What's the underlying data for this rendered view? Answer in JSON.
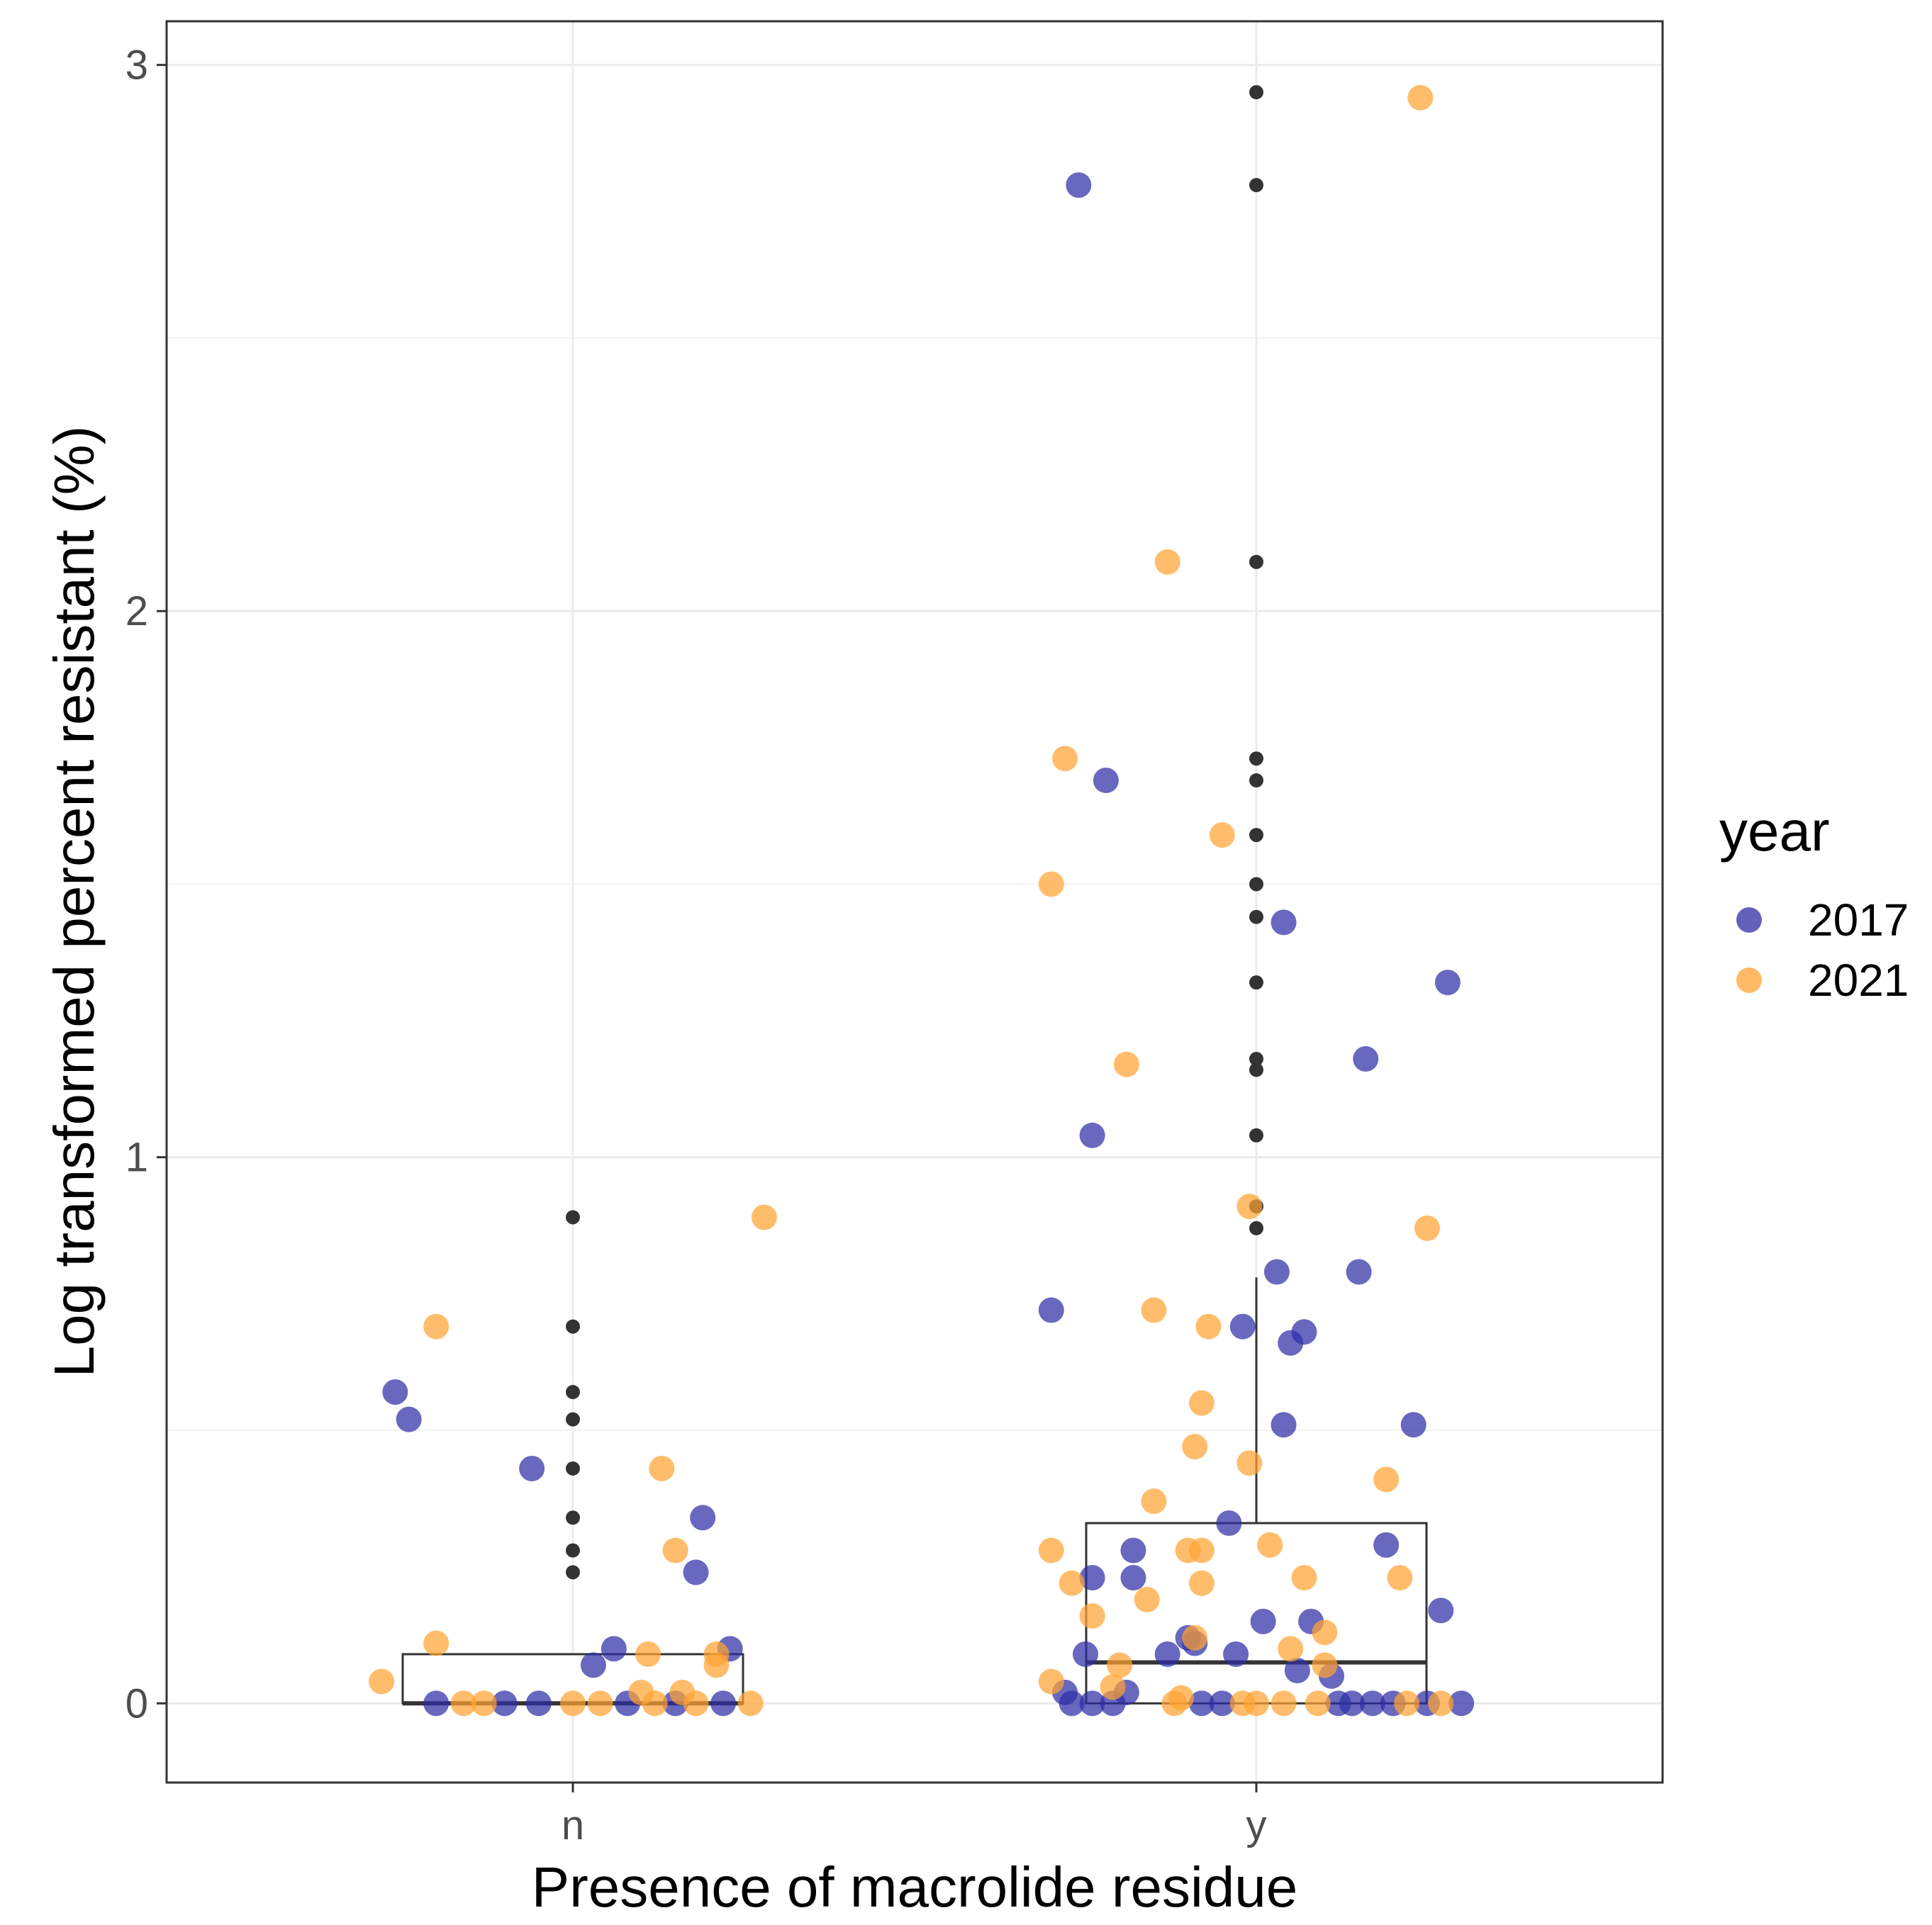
{
  "chart_data": {
    "type": "box-jitter",
    "title": "",
    "xlabel": "Presence of macrolide residue",
    "ylabel": "Log transformed percent resistant (%)",
    "categories": [
      "n",
      "y"
    ],
    "ylim": [
      -0.145,
      3.08
    ],
    "yticks": [
      0,
      1,
      2,
      3
    ],
    "ytick_labels": [
      "0",
      "1",
      "2",
      "3"
    ],
    "grid": true,
    "legend": {
      "title": "year",
      "position": "right",
      "entries": [
        {
          "label": "2017",
          "color": "#2E2EA6"
        },
        {
          "label": "2021",
          "color": "#FFA333"
        }
      ]
    },
    "boxplots": [
      {
        "category": "n",
        "min": 0,
        "q1": 0,
        "median": 0,
        "q3": 0.09,
        "max": 0.09,
        "outliers": [
          0.89,
          0.69,
          0.57,
          0.52,
          0.43,
          0.34,
          0.28,
          0.24
        ]
      },
      {
        "category": "y",
        "min": 0,
        "q1": 0,
        "median": 0.075,
        "q3": 0.33,
        "max": 0.78,
        "outliers": [
          2.95,
          2.78,
          2.09,
          1.73,
          1.69,
          1.59,
          1.5,
          1.44,
          1.32,
          1.18,
          1.16,
          1.04,
          0.91,
          0.87
        ]
      }
    ],
    "series": [
      {
        "name": "2017",
        "color": "#2E2EA6",
        "points": [
          {
            "x": "n",
            "dx": -0.26,
            "y": 0.57
          },
          {
            "x": "n",
            "dx": -0.24,
            "y": 0.52
          },
          {
            "x": "n",
            "dx": -0.06,
            "y": 0.43
          },
          {
            "x": "n",
            "dx": 0.19,
            "y": 0.34
          },
          {
            "x": "n",
            "dx": 0.18,
            "y": 0.24
          },
          {
            "x": "n",
            "dx": 0.23,
            "y": 0.1
          },
          {
            "x": "n",
            "dx": 0.06,
            "y": 0.1
          },
          {
            "x": "n",
            "dx": 0.03,
            "y": 0.07
          },
          {
            "x": "n",
            "dx": -0.2,
            "y": 0
          },
          {
            "x": "n",
            "dx": -0.1,
            "y": 0
          },
          {
            "x": "n",
            "dx": -0.05,
            "y": 0
          },
          {
            "x": "n",
            "dx": 0.08,
            "y": 0
          },
          {
            "x": "n",
            "dx": 0.15,
            "y": 0
          },
          {
            "x": "n",
            "dx": 0.22,
            "y": 0
          },
          {
            "x": "y",
            "dx": -0.26,
            "y": 2.78
          },
          {
            "x": "y",
            "dx": -0.22,
            "y": 1.69
          },
          {
            "x": "y",
            "dx": 0.04,
            "y": 1.43
          },
          {
            "x": "y",
            "dx": 0.28,
            "y": 1.32
          },
          {
            "x": "y",
            "dx": 0.16,
            "y": 1.18
          },
          {
            "x": "y",
            "dx": -0.24,
            "y": 1.04
          },
          {
            "x": "y",
            "dx": 0.03,
            "y": 0.79
          },
          {
            "x": "y",
            "dx": 0.15,
            "y": 0.79
          },
          {
            "x": "y",
            "dx": -0.3,
            "y": 0.72
          },
          {
            "x": "y",
            "dx": -0.02,
            "y": 0.69
          },
          {
            "x": "y",
            "dx": 0.07,
            "y": 0.68
          },
          {
            "x": "y",
            "dx": 0.05,
            "y": 0.66
          },
          {
            "x": "y",
            "dx": 0.04,
            "y": 0.51
          },
          {
            "x": "y",
            "dx": 0.23,
            "y": 0.51
          },
          {
            "x": "y",
            "dx": -0.04,
            "y": 0.33
          },
          {
            "x": "y",
            "dx": 0.19,
            "y": 0.29
          },
          {
            "x": "y",
            "dx": -0.18,
            "y": 0.28
          },
          {
            "x": "y",
            "dx": -0.24,
            "y": 0.23
          },
          {
            "x": "y",
            "dx": -0.18,
            "y": 0.23
          },
          {
            "x": "y",
            "dx": 0.27,
            "y": 0.17
          },
          {
            "x": "y",
            "dx": 0.01,
            "y": 0.15
          },
          {
            "x": "y",
            "dx": 0.08,
            "y": 0.15
          },
          {
            "x": "y",
            "dx": -0.1,
            "y": 0.12
          },
          {
            "x": "y",
            "dx": -0.09,
            "y": 0.11
          },
          {
            "x": "y",
            "dx": -0.25,
            "y": 0.09
          },
          {
            "x": "y",
            "dx": -0.13,
            "y": 0.09
          },
          {
            "x": "y",
            "dx": -0.03,
            "y": 0.09
          },
          {
            "x": "y",
            "dx": 0.06,
            "y": 0.06
          },
          {
            "x": "y",
            "dx": 0.11,
            "y": 0.05
          },
          {
            "x": "y",
            "dx": -0.28,
            "y": 0.02
          },
          {
            "x": "y",
            "dx": -0.19,
            "y": 0.02
          },
          {
            "x": "y",
            "dx": -0.27,
            "y": 0
          },
          {
            "x": "y",
            "dx": -0.24,
            "y": 0
          },
          {
            "x": "y",
            "dx": -0.21,
            "y": 0
          },
          {
            "x": "y",
            "dx": -0.08,
            "y": 0
          },
          {
            "x": "y",
            "dx": -0.05,
            "y": 0
          },
          {
            "x": "y",
            "dx": 0.12,
            "y": 0
          },
          {
            "x": "y",
            "dx": 0.14,
            "y": 0
          },
          {
            "x": "y",
            "dx": 0.17,
            "y": 0
          },
          {
            "x": "y",
            "dx": 0.2,
            "y": 0
          },
          {
            "x": "y",
            "dx": 0.25,
            "y": 0
          },
          {
            "x": "y",
            "dx": 0.3,
            "y": 0
          }
        ]
      },
      {
        "name": "2021",
        "color": "#FFA333",
        "points": [
          {
            "x": "n",
            "dx": 0.28,
            "y": 0.89
          },
          {
            "x": "n",
            "dx": -0.2,
            "y": 0.69
          },
          {
            "x": "n",
            "dx": 0.13,
            "y": 0.43
          },
          {
            "x": "n",
            "dx": 0.15,
            "y": 0.28
          },
          {
            "x": "n",
            "dx": -0.2,
            "y": 0.11
          },
          {
            "x": "n",
            "dx": 0.11,
            "y": 0.09
          },
          {
            "x": "n",
            "dx": 0.21,
            "y": 0.09
          },
          {
            "x": "n",
            "dx": 0.21,
            "y": 0.07
          },
          {
            "x": "n",
            "dx": -0.28,
            "y": 0.04
          },
          {
            "x": "n",
            "dx": 0.1,
            "y": 0.02
          },
          {
            "x": "n",
            "dx": 0.16,
            "y": 0.02
          },
          {
            "x": "n",
            "dx": -0.16,
            "y": 0
          },
          {
            "x": "n",
            "dx": -0.13,
            "y": 0
          },
          {
            "x": "n",
            "dx": 0.0,
            "y": 0
          },
          {
            "x": "n",
            "dx": 0.04,
            "y": 0
          },
          {
            "x": "n",
            "dx": 0.12,
            "y": 0
          },
          {
            "x": "n",
            "dx": 0.18,
            "y": 0
          },
          {
            "x": "n",
            "dx": 0.26,
            "y": 0
          },
          {
            "x": "y",
            "dx": 0.24,
            "y": 2.94
          },
          {
            "x": "y",
            "dx": -0.13,
            "y": 2.09
          },
          {
            "x": "y",
            "dx": -0.28,
            "y": 1.73
          },
          {
            "x": "y",
            "dx": -0.05,
            "y": 1.59
          },
          {
            "x": "y",
            "dx": -0.3,
            "y": 1.5
          },
          {
            "x": "y",
            "dx": -0.19,
            "y": 1.17
          },
          {
            "x": "y",
            "dx": -0.01,
            "y": 0.91
          },
          {
            "x": "y",
            "dx": 0.25,
            "y": 0.87
          },
          {
            "x": "y",
            "dx": -0.15,
            "y": 0.72
          },
          {
            "x": "y",
            "dx": -0.07,
            "y": 0.69
          },
          {
            "x": "y",
            "dx": -0.08,
            "y": 0.55
          },
          {
            "x": "y",
            "dx": -0.09,
            "y": 0.47
          },
          {
            "x": "y",
            "dx": -0.01,
            "y": 0.44
          },
          {
            "x": "y",
            "dx": 0.19,
            "y": 0.41
          },
          {
            "x": "y",
            "dx": -0.15,
            "y": 0.37
          },
          {
            "x": "y",
            "dx": 0.02,
            "y": 0.29
          },
          {
            "x": "y",
            "dx": -0.3,
            "y": 0.28
          },
          {
            "x": "y",
            "dx": -0.1,
            "y": 0.28
          },
          {
            "x": "y",
            "dx": -0.08,
            "y": 0.28
          },
          {
            "x": "y",
            "dx": 0.07,
            "y": 0.23
          },
          {
            "x": "y",
            "dx": 0.21,
            "y": 0.23
          },
          {
            "x": "y",
            "dx": -0.27,
            "y": 0.22
          },
          {
            "x": "y",
            "dx": -0.08,
            "y": 0.22
          },
          {
            "x": "y",
            "dx": -0.16,
            "y": 0.19
          },
          {
            "x": "y",
            "dx": -0.24,
            "y": 0.16
          },
          {
            "x": "y",
            "dx": 0.1,
            "y": 0.13
          },
          {
            "x": "y",
            "dx": -0.09,
            "y": 0.12
          },
          {
            "x": "y",
            "dx": 0.05,
            "y": 0.1
          },
          {
            "x": "y",
            "dx": -0.2,
            "y": 0.07
          },
          {
            "x": "y",
            "dx": 0.1,
            "y": 0.07
          },
          {
            "x": "y",
            "dx": -0.3,
            "y": 0.04
          },
          {
            "x": "y",
            "dx": -0.21,
            "y": 0.03
          },
          {
            "x": "y",
            "dx": -0.11,
            "y": 0.01
          },
          {
            "x": "y",
            "dx": -0.12,
            "y": 0
          },
          {
            "x": "y",
            "dx": -0.02,
            "y": 0
          },
          {
            "x": "y",
            "dx": 0.0,
            "y": 0
          },
          {
            "x": "y",
            "dx": 0.04,
            "y": 0
          },
          {
            "x": "y",
            "dx": 0.09,
            "y": 0
          },
          {
            "x": "y",
            "dx": 0.22,
            "y": 0
          },
          {
            "x": "y",
            "dx": 0.27,
            "y": 0
          }
        ]
      }
    ]
  }
}
